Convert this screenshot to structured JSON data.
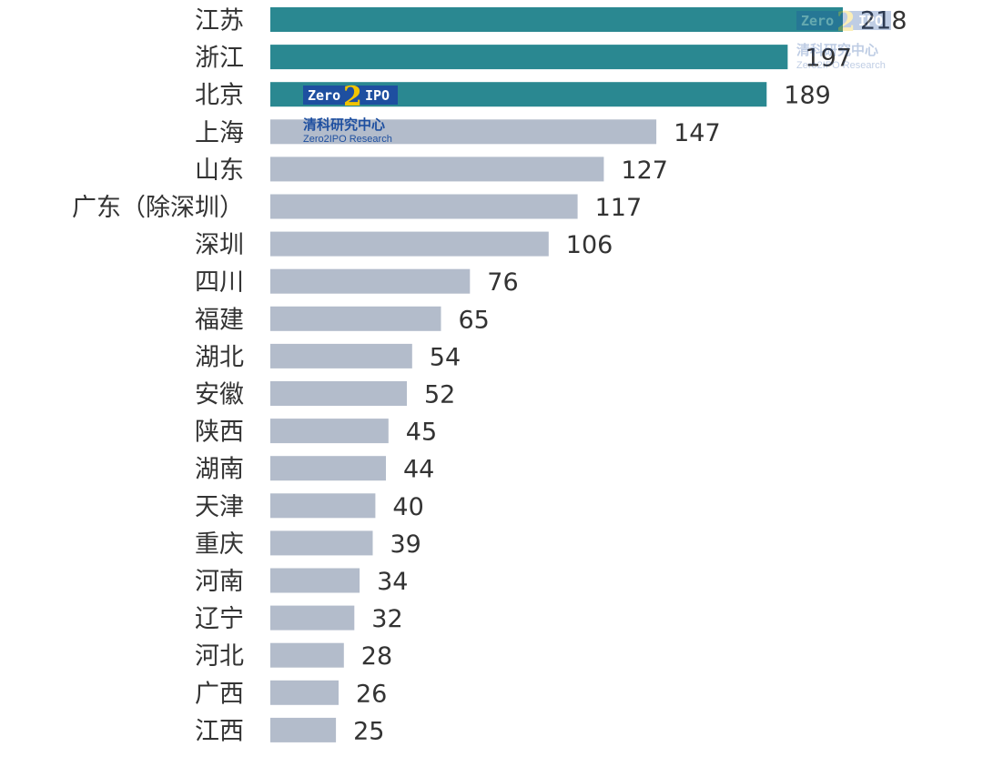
{
  "watermark": {
    "logo_zero": "Zero",
    "logo_two": "2",
    "logo_ipo": "IPO",
    "name_cn": "清科研究中心",
    "name_en": "Zero2IPO Research"
  },
  "colors": {
    "highlight": "#2a8891",
    "default": "#b3bccb",
    "logo_blue": "#1e4fa0",
    "logo_yellow": "#f2c400"
  },
  "chart_data": {
    "type": "bar",
    "orientation": "horizontal",
    "title": "",
    "xlabel": "",
    "ylabel": "",
    "xlim": [
      0,
      218
    ],
    "grid": false,
    "legend": "none",
    "highlighted_count": 3,
    "categories": [
      "江苏",
      "浙江",
      "北京",
      "上海",
      "山东",
      "广东（除深圳）",
      "深圳",
      "四川",
      "福建",
      "湖北",
      "安徽",
      "陕西",
      "湖南",
      "天津",
      "重庆",
      "河南",
      "辽宁",
      "河北",
      "广西",
      "江西"
    ],
    "values": [
      218,
      197,
      189,
      147,
      127,
      117,
      106,
      76,
      65,
      54,
      52,
      45,
      44,
      40,
      39,
      34,
      32,
      28,
      26,
      25
    ]
  }
}
